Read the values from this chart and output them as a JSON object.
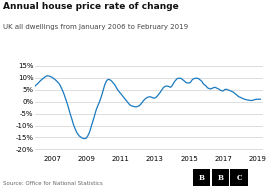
{
  "title": "Annual house price rate of change",
  "subtitle": "UK all dwellings from January 2006 to February 2019",
  "source": "Source: Office for National Statistics",
  "line_color": "#1a7abf",
  "background_color": "#ffffff",
  "ylim": [
    -22,
    15
  ],
  "yticks": [
    -20,
    -15,
    -10,
    -5,
    0,
    5,
    10,
    15
  ],
  "xtick_years": [
    2007,
    2009,
    2011,
    2013,
    2015,
    2017,
    2019
  ],
  "x": [
    2006.0,
    2006.08,
    2006.17,
    2006.25,
    2006.33,
    2006.42,
    2006.5,
    2006.58,
    2006.67,
    2006.75,
    2006.83,
    2006.92,
    2007.0,
    2007.08,
    2007.17,
    2007.25,
    2007.33,
    2007.42,
    2007.5,
    2007.58,
    2007.67,
    2007.75,
    2007.83,
    2007.92,
    2008.0,
    2008.08,
    2008.17,
    2008.25,
    2008.33,
    2008.42,
    2008.5,
    2008.58,
    2008.67,
    2008.75,
    2008.83,
    2008.92,
    2009.0,
    2009.08,
    2009.17,
    2009.25,
    2009.33,
    2009.42,
    2009.5,
    2009.58,
    2009.67,
    2009.75,
    2009.83,
    2009.92,
    2010.0,
    2010.08,
    2010.17,
    2010.25,
    2010.33,
    2010.42,
    2010.5,
    2010.58,
    2010.67,
    2010.75,
    2010.83,
    2010.92,
    2011.0,
    2011.08,
    2011.17,
    2011.25,
    2011.33,
    2011.42,
    2011.5,
    2011.58,
    2011.67,
    2011.75,
    2011.83,
    2011.92,
    2012.0,
    2012.08,
    2012.17,
    2012.25,
    2012.33,
    2012.42,
    2012.5,
    2012.58,
    2012.67,
    2012.75,
    2012.83,
    2012.92,
    2013.0,
    2013.08,
    2013.17,
    2013.25,
    2013.33,
    2013.42,
    2013.5,
    2013.58,
    2013.67,
    2013.75,
    2013.83,
    2013.92,
    2014.0,
    2014.08,
    2014.17,
    2014.25,
    2014.33,
    2014.42,
    2014.5,
    2014.58,
    2014.67,
    2014.75,
    2014.83,
    2014.92,
    2015.0,
    2015.08,
    2015.17,
    2015.25,
    2015.33,
    2015.42,
    2015.5,
    2015.58,
    2015.67,
    2015.75,
    2015.83,
    2015.92,
    2016.0,
    2016.08,
    2016.17,
    2016.25,
    2016.33,
    2016.42,
    2016.5,
    2016.58,
    2016.67,
    2016.75,
    2016.83,
    2016.92,
    2017.0,
    2017.08,
    2017.17,
    2017.25,
    2017.33,
    2017.42,
    2017.5,
    2017.58,
    2017.67,
    2017.75,
    2017.83,
    2017.92,
    2018.0,
    2018.08,
    2018.17,
    2018.25,
    2018.33,
    2018.42,
    2018.5,
    2018.58,
    2018.67,
    2018.75,
    2018.83,
    2018.92,
    2019.0,
    2019.17
  ],
  "y": [
    6.5,
    7.0,
    7.5,
    8.2,
    8.8,
    9.3,
    9.8,
    10.3,
    10.7,
    10.8,
    10.7,
    10.5,
    10.2,
    9.8,
    9.3,
    8.8,
    8.2,
    7.5,
    6.5,
    5.2,
    3.8,
    2.2,
    0.5,
    -1.5,
    -3.5,
    -5.5,
    -7.5,
    -9.5,
    -11.0,
    -12.5,
    -13.5,
    -14.3,
    -14.8,
    -15.2,
    -15.4,
    -15.5,
    -15.3,
    -14.5,
    -13.2,
    -11.5,
    -9.5,
    -7.5,
    -5.5,
    -3.5,
    -1.8,
    -0.5,
    1.0,
    3.0,
    5.0,
    7.0,
    8.5,
    9.2,
    9.3,
    9.0,
    8.5,
    7.8,
    7.0,
    6.0,
    5.0,
    4.2,
    3.5,
    2.8,
    2.0,
    1.2,
    0.5,
    -0.3,
    -1.0,
    -1.5,
    -1.8,
    -2.0,
    -2.1,
    -2.2,
    -2.0,
    -1.8,
    -1.2,
    -0.5,
    0.3,
    1.0,
    1.5,
    1.8,
    2.0,
    2.0,
    1.8,
    1.5,
    1.5,
    1.8,
    2.5,
    3.2,
    4.0,
    5.0,
    5.8,
    6.3,
    6.5,
    6.5,
    6.3,
    6.0,
    6.5,
    7.5,
    8.5,
    9.2,
    9.7,
    9.8,
    9.8,
    9.5,
    9.0,
    8.5,
    8.0,
    7.8,
    7.8,
    8.0,
    9.0,
    9.5,
    9.7,
    9.8,
    9.8,
    9.5,
    9.0,
    8.5,
    7.5,
    7.0,
    6.5,
    5.8,
    5.5,
    5.3,
    5.5,
    5.8,
    6.0,
    5.8,
    5.5,
    5.2,
    4.8,
    4.5,
    4.5,
    5.0,
    5.2,
    5.0,
    4.8,
    4.5,
    4.2,
    4.0,
    3.5,
    3.0,
    2.5,
    2.0,
    1.8,
    1.5,
    1.2,
    1.0,
    0.8,
    0.7,
    0.6,
    0.5,
    0.5,
    0.6,
    0.8,
    1.0,
    1.0,
    1.0
  ]
}
